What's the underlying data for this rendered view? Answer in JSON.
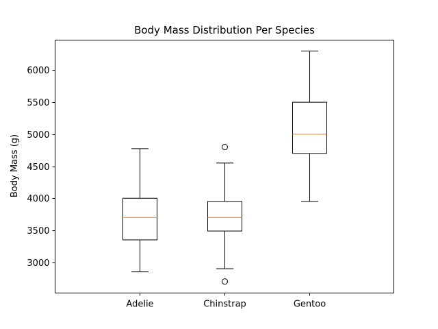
{
  "chart_data": {
    "type": "box",
    "title": "Body Mass Distribution Per Species",
    "xlabel": "",
    "ylabel": "Body Mass (g)",
    "ylim": [
      2520,
      6470
    ],
    "yticks": [
      3000,
      3500,
      4000,
      4500,
      5000,
      5500,
      6000
    ],
    "categories": [
      "Adelie",
      "Chinstrap",
      "Gentoo"
    ],
    "boxes": [
      {
        "whisker_low": 2850,
        "q1": 3350,
        "median": 3700,
        "q3": 4000,
        "whisker_high": 4775,
        "outliers": []
      },
      {
        "whisker_low": 2900,
        "q1": 3488,
        "median": 3700,
        "q3": 3950,
        "whisker_high": 4550,
        "outliers": [
          4800,
          2700
        ]
      },
      {
        "whisker_low": 3950,
        "q1": 4700,
        "median": 5000,
        "q3": 5500,
        "whisker_high": 6300,
        "outliers": []
      }
    ],
    "grid": false,
    "colors": {
      "box": "#000000",
      "median": "#ff7f0e"
    }
  }
}
